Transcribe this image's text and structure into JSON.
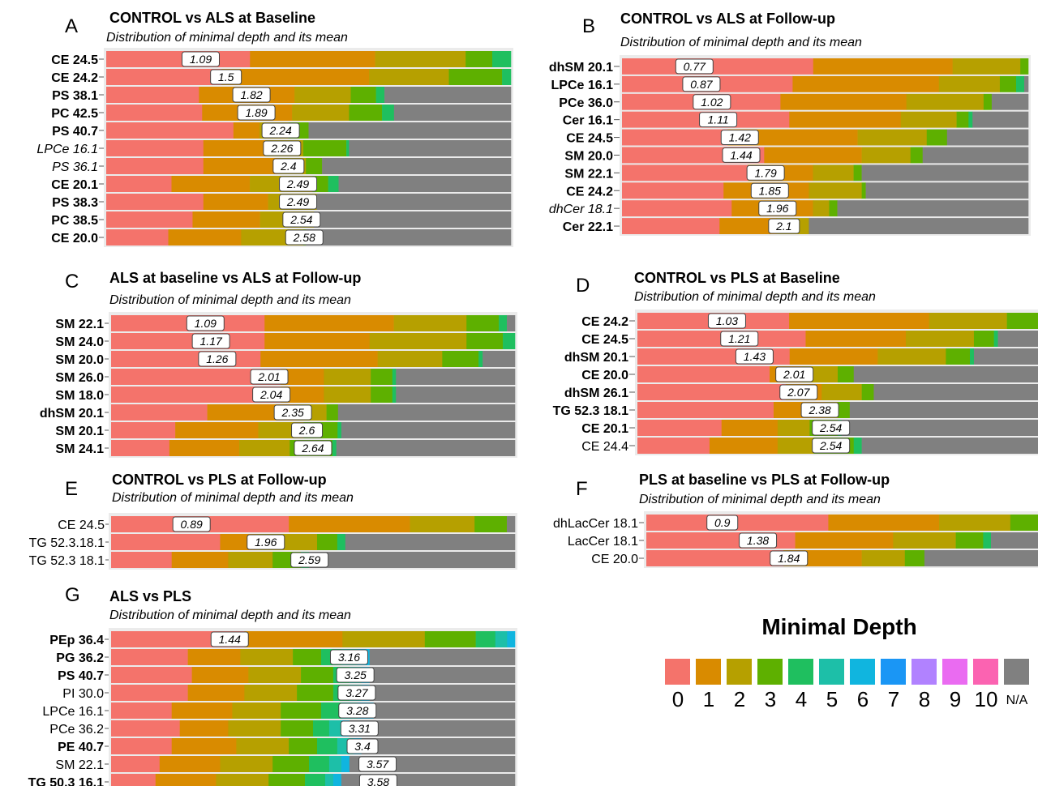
{
  "colors": [
    "#f4736b",
    "#d98b00",
    "#b6a000",
    "#5eb000",
    "#1fbf5f",
    "#1dbfa8",
    "#10b5df",
    "#1a96f5",
    "#b182ff",
    "#ea6bf1",
    "#fb63b1",
    "#808080"
  ],
  "legend": {
    "title": "Minimal Depth",
    "labels": [
      "0",
      "1",
      "2",
      "3",
      "4",
      "5",
      "6",
      "7",
      "8",
      "9",
      "10",
      "N/A"
    ]
  },
  "chart_data": [
    {
      "type": "bar",
      "panel": "A",
      "title": "CONTROL vs ALS at Baseline",
      "subtitle": "Distribution of minimal depth and its mean",
      "categories": [
        "CE 24.5",
        "CE 24.2",
        "PS 38.1",
        "PC 42.5",
        "PS 40.7",
        "LPCe 16.1",
        "PS 36.1",
        "CE 20.1",
        "PS 38.3",
        "PC 38.5",
        "CE 20.0"
      ],
      "label_styles": [
        "b",
        "b",
        "b",
        "b",
        "b",
        "i",
        "i",
        "b",
        "b",
        "b",
        "b"
      ],
      "means": [
        1.09,
        1.5,
        1.82,
        1.89,
        2.24,
        2.26,
        2.4,
        2.49,
        2.49,
        2.54,
        2.58
      ],
      "counts": [
        [
          54,
          47,
          34,
          10,
          7,
          0,
          0,
          0,
          0,
          0,
          0,
          0
        ],
        [
          39,
          50,
          27,
          18,
          3,
          0,
          0,
          0,
          0,
          0,
          0,
          0
        ],
        [
          33,
          34,
          20,
          9,
          3,
          0,
          0,
          0,
          0,
          0,
          0,
          45
        ],
        [
          32,
          30,
          19,
          11,
          4,
          0,
          0,
          0,
          0,
          0,
          0,
          39
        ],
        [
          44,
          9,
          10,
          7,
          0,
          0,
          0,
          0,
          0,
          0,
          0,
          70
        ],
        [
          36,
          23,
          14,
          16,
          1,
          0,
          0,
          0,
          0,
          0,
          0,
          60
        ],
        [
          36,
          28,
          10,
          6,
          0,
          0,
          0,
          0,
          0,
          0,
          0,
          70
        ],
        [
          25,
          30,
          24,
          6,
          4,
          0,
          0,
          0,
          0,
          0,
          0,
          66
        ],
        [
          36,
          24,
          18,
          0,
          0,
          0,
          0,
          0,
          0,
          0,
          0,
          72
        ],
        [
          32,
          25,
          20,
          0,
          0,
          0,
          0,
          0,
          0,
          0,
          0,
          73
        ],
        [
          23,
          27,
          23,
          1,
          0,
          0,
          0,
          0,
          0,
          0,
          0,
          76
        ]
      ]
    },
    {
      "type": "bar",
      "panel": "B",
      "title": "CONTROL vs ALS at Follow-up",
      "subtitle": "Distribution of minimal depth and its mean",
      "categories": [
        "dhSM 20.1",
        "LPCe 16.1",
        "PCe 36.0",
        "Cer 16.1",
        "CE 24.5",
        "SM 20.0",
        "SM 22.1",
        "CE 24.2",
        "dhCer 18.1",
        "Cer 22.1"
      ],
      "label_styles": [
        "b",
        "b",
        "b",
        "b",
        "b",
        "b",
        "b",
        "b",
        "i",
        "b"
      ],
      "means": [
        0.77,
        0.87,
        1.02,
        1.11,
        1.42,
        1.44,
        1.79,
        1.85,
        1.96,
        2.1
      ],
      "counts": [
        [
          48,
          35,
          17,
          2,
          0,
          0,
          0,
          0,
          0,
          0,
          0,
          0
        ],
        [
          42,
          36,
          15,
          4,
          2,
          0,
          0,
          0,
          0,
          0,
          0,
          1
        ],
        [
          39,
          31,
          19,
          2,
          0,
          0,
          0,
          0,
          0,
          0,
          0,
          9
        ],
        [
          42,
          28,
          14,
          3,
          1,
          0,
          0,
          0,
          0,
          0,
          0,
          14
        ],
        [
          26,
          32,
          17,
          5,
          0,
          0,
          0,
          0,
          0,
          0,
          0,
          20
        ],
        [
          35,
          24,
          12,
          3,
          0,
          0,
          0,
          0,
          0,
          0,
          0,
          26
        ],
        [
          31,
          16,
          10,
          2,
          0,
          0,
          0,
          0,
          0,
          0,
          0,
          41
        ],
        [
          25,
          21,
          13,
          1,
          0,
          0,
          0,
          0,
          0,
          0,
          0,
          40
        ],
        [
          27,
          20,
          4,
          2,
          0,
          0,
          0,
          0,
          0,
          0,
          0,
          47
        ],
        [
          24,
          14,
          8,
          0,
          0,
          0,
          0,
          0,
          0,
          0,
          0,
          54
        ]
      ]
    },
    {
      "type": "bar",
      "panel": "C",
      "title": "ALS at baseline vs ALS at Follow-up",
      "subtitle": "Distribution of minimal depth and its mean",
      "categories": [
        "SM 22.1",
        "SM 24.0",
        "SM 20.0",
        "SM 26.0",
        "SM 18.0",
        "dhSM 20.1",
        "SM 20.1",
        "SM 24.1"
      ],
      "label_styles": [
        "b",
        "b",
        "b",
        "b",
        "b",
        "b",
        "b",
        "b"
      ],
      "means": [
        1.09,
        1.17,
        1.26,
        2.01,
        2.04,
        2.35,
        2.6,
        2.64
      ],
      "counts": [
        [
          38,
          32,
          18,
          8,
          2,
          0,
          0,
          0,
          0,
          0,
          0,
          2
        ],
        [
          38,
          26,
          24,
          9,
          3,
          0,
          0,
          0,
          0,
          0,
          0,
          0
        ],
        [
          37,
          29,
          16,
          9,
          1,
          0,
          0,
          0,
          0,
          0,
          0,
          8
        ],
        [
          47,
          12,
          13,
          6,
          1,
          0,
          0,
          0,
          0,
          0,
          0,
          33
        ],
        [
          47,
          12,
          13,
          6,
          1,
          0,
          0,
          0,
          0,
          0,
          0,
          33
        ],
        [
          25,
          23,
          8,
          3,
          0,
          0,
          0,
          0,
          0,
          0,
          0,
          46
        ],
        [
          17,
          22,
          12,
          9,
          1,
          0,
          0,
          0,
          0,
          0,
          0,
          46
        ],
        [
          15,
          18,
          13,
          11,
          1,
          0,
          0,
          0,
          0,
          0,
          0,
          46
        ]
      ]
    },
    {
      "type": "bar",
      "panel": "D",
      "title": "CONTROL vs PLS at Baseline",
      "subtitle": "Distribution of minimal depth and its mean",
      "categories": [
        "CE 24.2",
        "CE 24.5",
        "dhSM 20.1",
        "CE 20.0",
        "dhSM 26.1",
        "TG 52.3 18.1",
        "CE 20.1",
        "CE 24.4"
      ],
      "label_styles": [
        "b",
        "b",
        "b",
        "b",
        "b",
        "b",
        "b",
        "n"
      ],
      "means": [
        1.03,
        1.21,
        1.43,
        2.01,
        2.07,
        2.38,
        2.54,
        2.54
      ],
      "counts": [
        [
          39,
          36,
          20,
          8,
          0,
          0,
          0,
          0,
          0,
          0,
          0,
          0
        ],
        [
          42,
          25,
          17,
          5,
          1,
          0,
          0,
          0,
          0,
          0,
          0,
          10
        ],
        [
          38,
          22,
          17,
          6,
          1,
          0,
          0,
          0,
          0,
          0,
          0,
          16
        ],
        [
          33,
          8,
          9,
          4,
          0,
          0,
          0,
          0,
          0,
          0,
          0,
          46
        ],
        [
          37,
          9,
          10,
          3,
          0,
          0,
          0,
          0,
          0,
          0,
          0,
          41
        ],
        [
          34,
          13,
          3,
          3,
          0,
          0,
          0,
          0,
          0,
          0,
          0,
          47
        ],
        [
          21,
          14,
          8,
          7,
          1,
          0,
          0,
          0,
          0,
          0,
          0,
          49
        ],
        [
          18,
          17,
          9,
          10,
          2,
          0,
          0,
          0,
          0,
          0,
          0,
          44
        ]
      ]
    },
    {
      "type": "bar",
      "panel": "E",
      "title": "CONTROL vs PLS at Follow-up",
      "subtitle": "Distribution of minimal depth and its mean",
      "categories": [
        "CE 24.5",
        "TG 52.3.18.1",
        "TG 52.3 18.1"
      ],
      "label_styles": [
        "n",
        "n",
        "n"
      ],
      "means": [
        0.89,
        1.96,
        2.59
      ],
      "counts": [
        [
          44,
          30,
          16,
          8,
          0,
          0,
          0,
          0,
          0,
          0,
          0,
          2
        ],
        [
          27,
          9,
          15,
          5,
          2,
          0,
          0,
          0,
          0,
          0,
          0,
          42
        ],
        [
          15,
          14,
          11,
          7,
          2,
          0,
          0,
          0,
          0,
          0,
          0,
          51
        ]
      ]
    },
    {
      "type": "bar",
      "panel": "F",
      "title": "PLS at baseline vs PLS at Follow-up",
      "subtitle": "Distribution of minimal depth and its mean",
      "categories": [
        "dhLacCer 18.1",
        "LacCer 18.1",
        "CE 20.0"
      ],
      "label_styles": [
        "n",
        "n",
        "n"
      ],
      "means": [
        0.9,
        1.38,
        1.84
      ],
      "counts": [
        [
          46,
          28,
          18,
          7,
          0,
          0,
          0,
          0,
          0,
          0,
          0,
          0
        ],
        [
          38,
          25,
          16,
          7,
          2,
          0,
          0,
          0,
          0,
          0,
          0,
          12
        ],
        [
          35,
          20,
          11,
          5,
          0,
          0,
          0,
          0,
          0,
          0,
          0,
          29
        ]
      ]
    },
    {
      "type": "bar",
      "panel": "G",
      "title": "ALS vs PLS",
      "subtitle": "Distribution of minimal depth and its mean",
      "categories": [
        "PEp 36.4",
        "PG 36.2",
        "PS 40.7",
        "PI 30.0",
        "LPCe 16.1",
        "PCe 36.2",
        "PE 40.7",
        "SM 22.1",
        "TG 50.3 16.1"
      ],
      "label_styles": [
        "b",
        "b",
        "b",
        "n",
        "n",
        "n",
        "b",
        "n",
        "b"
      ],
      "means": [
        1.44,
        3.16,
        3.25,
        3.27,
        3.28,
        3.31,
        3.4,
        3.57,
        3.58
      ],
      "counts": [
        [
          34,
          25,
          21,
          13,
          5,
          3,
          2,
          0,
          0,
          0,
          0,
          0
        ],
        [
          19,
          13,
          13,
          7,
          5,
          4,
          3,
          0,
          0,
          0,
          0,
          36
        ],
        [
          20,
          14,
          13,
          8,
          4,
          3,
          2,
          0,
          0,
          0,
          0,
          36
        ],
        [
          19,
          14,
          13,
          9,
          4,
          3,
          2,
          0,
          0,
          0,
          0,
          36
        ],
        [
          15,
          15,
          12,
          10,
          5,
          4,
          4,
          0,
          0,
          0,
          0,
          35
        ],
        [
          17,
          12,
          13,
          8,
          4,
          3,
          2,
          0,
          0,
          0,
          0,
          41
        ],
        [
          15,
          16,
          13,
          7,
          5,
          4,
          2,
          0,
          0,
          0,
          0,
          38
        ],
        [
          12,
          15,
          13,
          9,
          5,
          3,
          2,
          0,
          0,
          0,
          0,
          41
        ],
        [
          11,
          15,
          13,
          9,
          5,
          2,
          2,
          0,
          0,
          0,
          0,
          43
        ]
      ]
    }
  ]
}
